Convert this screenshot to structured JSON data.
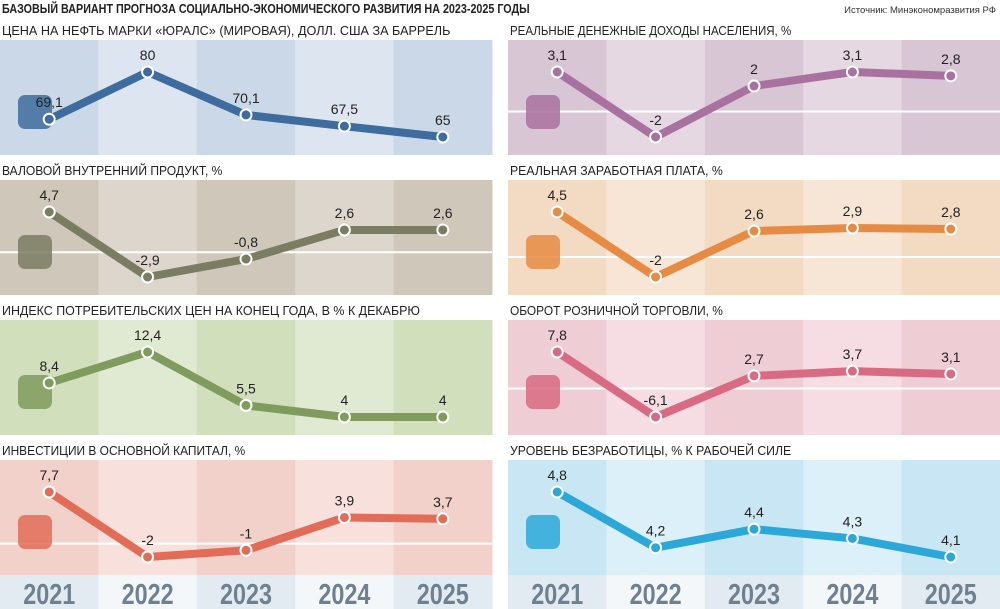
{
  "header": {
    "title": "БАЗОВЫЙ ВАРИАНТ ПРОГНОЗА СОЦИАЛЬНО-ЭКОНОМИЧЕСКОГО РАЗВИТИЯ НА 2023-2025 ГОДЫ",
    "source": "Источник: Минэкономразвития РФ"
  },
  "chart_data": {
    "type": "line",
    "categories": [
      "2021",
      "2022",
      "2023",
      "2024",
      "2025"
    ],
    "charts": [
      {
        "title": "ЦЕНА НА НЕФТЬ МАРКИ «ЮРАЛС» (МИРОВАЯ), ДОЛЛ. США ЗА БАРРЕЛЬ",
        "values": [
          69.1,
          80,
          70.1,
          67.5,
          65
        ],
        "labels": [
          "69,1",
          "80",
          "70,1",
          "67,5",
          "65"
        ],
        "color": "#3f6c9e",
        "bg": "#cbd8e7",
        "bg2": "#dde6f0",
        "icon": "oil-barrel-icon",
        "col": 0,
        "row": 0
      },
      {
        "title": "РЕАЛЬНЫЕ ДЕНЕЖНЫЕ ДОХОДЫ НАСЕЛЕНИЯ, %",
        "values": [
          3.1,
          -2,
          2,
          3.1,
          2.8
        ],
        "labels": [
          "3,1",
          "-2",
          "2",
          "3,1",
          "2,8"
        ],
        "color": "#a8719f",
        "bg": "#d9c6d5",
        "bg2": "#e6d8e3",
        "icon": "piggy-bank-icon",
        "col": 1,
        "row": 0
      },
      {
        "title": "ВАЛОВОЙ ВНУТРЕННИЙ ПРОДУКТ, %",
        "values": [
          4.7,
          -2.9,
          -0.8,
          2.6,
          2.6
        ],
        "labels": [
          "4,7",
          "-2,9",
          "-0,8",
          "2,6",
          "2,6"
        ],
        "color": "#7a7d61",
        "bg": "#d0c7bb",
        "bg2": "#ddd6cc",
        "icon": "factory-icon",
        "col": 0,
        "row": 1
      },
      {
        "title": "РЕАЛЬНАЯ ЗАРАБОТНАЯ ПЛАТА, %",
        "values": [
          4.5,
          -2,
          2.6,
          2.9,
          2.8
        ],
        "labels": [
          "4,5",
          "-2",
          "2,6",
          "2,9",
          "2,8"
        ],
        "color": "#e78b44",
        "bg": "#f2dac3",
        "bg2": "#f7e6d6",
        "icon": "ruble-coin-icon",
        "col": 1,
        "row": 1
      },
      {
        "title": "ИНДЕКС ПОТРЕБИТЕЛЬСКИХ ЦЕН НА КОНЕЦ ГОДА, В % К ДЕКАБРЮ",
        "values": [
          8.4,
          12.4,
          5.5,
          4,
          4
        ],
        "labels": [
          "8,4",
          "12,4",
          "5,5",
          "4",
          "4"
        ],
        "color": "#7f9b5d",
        "bg": "#d2dfbd",
        "bg2": "#e0e9d1",
        "icon": "calculator-icon",
        "col": 0,
        "row": 2
      },
      {
        "title": "ОБОРОТ РОЗНИЧНОЙ ТОРГОВЛИ, %",
        "values": [
          7.8,
          -6.1,
          2.7,
          3.7,
          3.1
        ],
        "labels": [
          "7,8",
          "-6,1",
          "2,7",
          "3,7",
          "3,1"
        ],
        "color": "#d96a83",
        "bg": "#efcdd5",
        "bg2": "#f5dde3",
        "icon": "shopping-cart-icon",
        "col": 1,
        "row": 2
      },
      {
        "title": "ИНВЕСТИЦИИ В ОСНОВНОЙ КАПИТАЛ, %",
        "values": [
          7.7,
          -2,
          -1,
          3.9,
          3.7
        ],
        "labels": [
          "7,7",
          "-2",
          "-1",
          "3,9",
          "3,7"
        ],
        "color": "#e26c58",
        "bg": "#f3d1cb",
        "bg2": "#f8e0dc",
        "icon": "factory-percent-icon",
        "col": 0,
        "row": 3
      },
      {
        "title": "УРОВЕНЬ БЕЗРАБОТИЦЫ, % К РАБОЧЕЙ СИЛЕ",
        "values": [
          4.8,
          4.2,
          4.4,
          4.3,
          4.1
        ],
        "labels": [
          "4,8",
          "4,2",
          "4,4",
          "4,3",
          "4,1"
        ],
        "color": "#2ba8d8",
        "bg": "#c9e6f5",
        "bg2": "#dcf0fa",
        "icon": "briefcase-x-icon",
        "col": 1,
        "row": 3
      }
    ],
    "year_color": "#6f8190"
  }
}
